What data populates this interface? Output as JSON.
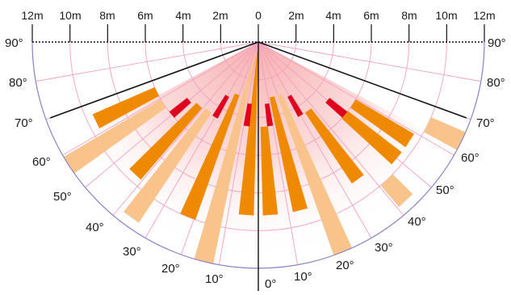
{
  "distance_labels": [
    "12m",
    "10m",
    "8m",
    "6m",
    "4m",
    "2m",
    "0",
    "2m",
    "4m",
    "6m",
    "8m",
    "10m",
    "12m"
  ],
  "angle_labels_left": [
    "90°",
    "80°",
    "70°",
    "60°",
    "50°",
    "40°",
    "30°",
    "20°",
    "10°"
  ],
  "angle_labels_right": [
    "90°",
    "80°",
    "70°",
    "60°",
    "50°",
    "40°",
    "30°",
    "20°",
    "10°"
  ],
  "angle_label_bottom": "0°",
  "colors": {
    "grid": "#f2a0c0",
    "outline": "#8a84c6",
    "axis": "#111111",
    "far_zone": "#f8c48c",
    "mid_zone": "#ef8a00",
    "near_zone": "#e0001e",
    "glow": "#f6b0b0"
  },
  "diagram": {
    "distance_step_m": 2,
    "max_distance_m": 12,
    "boundary_lines_deg": [
      70
    ],
    "zones": [
      {
        "type": "far",
        "angle_deg": 64,
        "inner_m": 10.0,
        "outer_m": 12.0,
        "width_deg": 5
      },
      {
        "type": "mid",
        "angle_deg": 57,
        "inner_m": 6.0,
        "outer_m": 9.6,
        "width_deg": 5
      },
      {
        "type": "near",
        "angle_deg": 50,
        "inner_m": 4.8,
        "outer_m": 6.0,
        "width_deg": 4
      },
      {
        "type": "mid",
        "angle_deg": 50,
        "inner_m": 6.0,
        "outer_m": 9.6,
        "width_deg": 5
      },
      {
        "type": "far",
        "angle_deg": 43,
        "inner_m": 10.0,
        "outer_m": 11.5,
        "width_deg": 5
      },
      {
        "type": "mid",
        "angle_deg": 36,
        "inner_m": 4.5,
        "outer_m": 9.0,
        "width_deg": 5
      },
      {
        "type": "near",
        "angle_deg": 30,
        "inner_m": 3.3,
        "outer_m": 4.5,
        "width_deg": 4
      },
      {
        "type": "far",
        "angle_deg": 22,
        "inner_m": 3.0,
        "outer_m": 12.0,
        "width_deg": 5
      },
      {
        "type": "mid",
        "angle_deg": 14,
        "inner_m": 3.0,
        "outer_m": 9.2,
        "width_deg": 5
      },
      {
        "type": "near",
        "angle_deg": 8,
        "inner_m": 3.3,
        "outer_m": 4.5,
        "width_deg": 4
      },
      {
        "type": "mid",
        "angle_deg": 4,
        "inner_m": 4.5,
        "outer_m": 9.2,
        "width_deg": 5
      },
      {
        "type": "mid",
        "angle_deg": -4,
        "inner_m": 0.5,
        "outer_m": 9.2,
        "width_deg": 5
      },
      {
        "type": "near",
        "angle_deg": -8,
        "inner_m": 3.3,
        "outer_m": 4.5,
        "width_deg": 4
      },
      {
        "type": "far",
        "angle_deg": -14,
        "inner_m": 0.5,
        "outer_m": 12.0,
        "width_deg": 5
      },
      {
        "type": "mid",
        "angle_deg": -22,
        "inner_m": 3.0,
        "outer_m": 10.0,
        "width_deg": 5
      },
      {
        "type": "near",
        "angle_deg": -30,
        "inner_m": 3.3,
        "outer_m": 4.6,
        "width_deg": 4
      },
      {
        "type": "far",
        "angle_deg": -36,
        "inner_m": 4.5,
        "outer_m": 11.5,
        "width_deg": 5
      },
      {
        "type": "mid",
        "angle_deg": -43,
        "inner_m": 4.6,
        "outer_m": 9.6,
        "width_deg": 5
      },
      {
        "type": "near",
        "angle_deg": -50,
        "inner_m": 4.8,
        "outer_m": 6.0,
        "width_deg": 4
      },
      {
        "type": "far",
        "angle_deg": -57,
        "inner_m": 6.0,
        "outer_m": 12.0,
        "width_deg": 5
      },
      {
        "type": "mid",
        "angle_deg": -64,
        "inner_m": 6.0,
        "outer_m": 9.6,
        "width_deg": 5
      }
    ]
  }
}
